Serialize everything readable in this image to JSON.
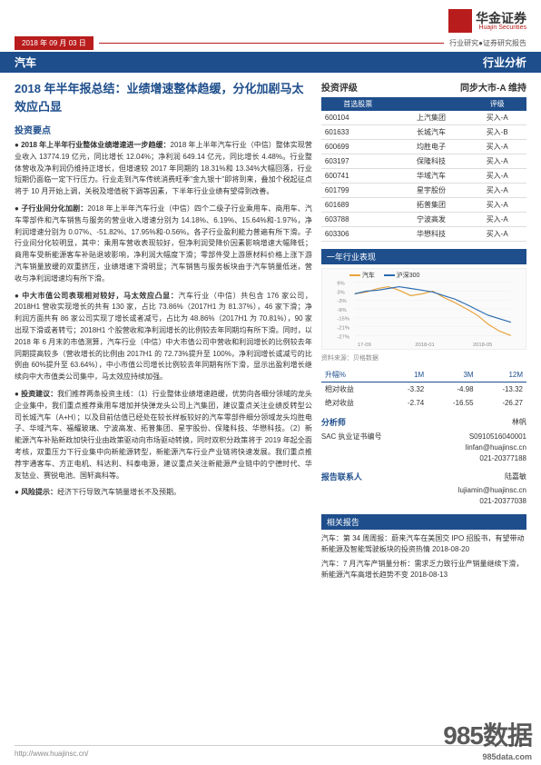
{
  "header": {
    "logo_cn": "华金证券",
    "logo_en": "Huajin Securities",
    "date": "2018 年 09 月 03 日",
    "meta": "行业研究●证券研究报告"
  },
  "bluebar": {
    "left": "汽车",
    "right": "行业分析"
  },
  "title": "2018 年半年报总结：业绩增速整体趋缓，分化加剧马太效应凸显",
  "section_header": "投资要点",
  "bullets": [
    {
      "lead": "2018 年上半年行业整体业绩增速进一步趋缓：",
      "body": "2018 年上半年汽车行业（中信）整体实现营业收入 13774.19 亿元，同比增长 12.04%；净利润 649.14 亿元，同比增长 4.48%。行业整体营收及净利润仍维持正增长，但增速较 2017 年同期的 18.31%和 13.34%大幅回落，行业短期仍面临一定下行压力。行业走到汽车传统消费旺季\"金九银十\"即将到来，叠加个税起征点将于 10 月开始上调，关税及增值税下调等因素，下半年行业业绩有望得到改善。"
    },
    {
      "lead": "子行业间分化加剧：",
      "body": "2018 年上半年汽车行业（中信）四个二级子行业乘用车、商用车、汽车零部件和汽车销售与服务的营业收入增速分别为 14.18%、6.19%、15.64%和-1.97%，净利润增速分别为 0.07%、-51.82%、17.95%和-0.56%。各子行业盈利能力普遍有所下滑。子行业间分化较明显，其中：乘用车营收表现较好，但净利润受降价因素影响增速大幅降低；商用车受新能源客车补贴退坡影响，净利润大幅度下滑；零部件受上游原材料价格上涨下游汽车销量放缓的双重挤压，业绩增速下滑明显；汽车销售与服务板块由于汽车销量低迷，营收与净利润增速均有所下滑。"
    },
    {
      "lead": "中大市值公司表现相对较好，马太效应凸显：",
      "body": "汽车行业（中信）共包含 176 家公司，2018H1 营收实现增长的共有 130 家，占比 73.86%（2017H1 为 81.37%），46 家下滑；净利润方面共有 86 家公司实现了增长或者减亏，占比为 48.86%（2017H1 为 70.81%），90 家出现下滑或者转亏；2018H1 个股营收和净利润增长的比例较去年同期均有所下滑。同时，以 2018 年 6 月末的市值测算，汽车行业（中信）中大市值公司中营收和利润增长的比例较去年同期提高较多（营收增长的比例由 2017H1 的 72.73%提升至 100%，净利润增长或减亏的比例由 60%提升至 63.64%），中小市值公司增长比例较去年同期有所下滑，显示出盈利增长继续向中大市值类公司集中，马太效应持续加强。"
    },
    {
      "lead": "投资建议：",
      "body": "我们推荐两条投资主线：（1）行业整体业绩增速趋缓，优势向各细分领域的龙头企业集中，我们重点推荐乘用车增加并快弹龙头公司上汽集团，建议重点关注业绩反转型公司长城汽车（A+H）；以及目前估值已经处在较长样板较好的汽车零部件细分领域龙头均胜电子、华域汽车、福耀玻璃、宁波高发、拓普集团、星宇股份、保隆科技、华懋科技。（2）新能源汽车补贴新政加快行业由政策驱动向市场驱动转换，同时双积分政策将于 2019 年起全面考核，双重压力下行业集中向新能源转型，新能源汽车行业产业链将快速发展。我们重点推荐宇通客车、方正电机、科达利、科泰电源，建议重点关注新能源产业链中的宁德时代、华友钴业、赛锐电池、国轩高科等。"
    },
    {
      "lead": "风险提示：",
      "body": "经济下行导致汽车销量增长不及预期。"
    }
  ],
  "rating": {
    "label": "投资评级",
    "value": "同步大市-A 维持"
  },
  "stock_table": {
    "headers": [
      "首选股票",
      "",
      "评级"
    ],
    "rows": [
      [
        "600104",
        "上汽集团",
        "买入-A"
      ],
      [
        "601633",
        "长城汽车",
        "买入-B"
      ],
      [
        "600699",
        "均胜电子",
        "买入-A"
      ],
      [
        "603197",
        "保隆科技",
        "买入-A"
      ],
      [
        "600741",
        "华域汽车",
        "买入-A"
      ],
      [
        "601799",
        "星宇股份",
        "买入-A"
      ],
      [
        "601689",
        "拓普集团",
        "买入-A"
      ],
      [
        "603788",
        "宁波高发",
        "买入-A"
      ],
      [
        "603306",
        "华懋科技",
        "买入-A"
      ]
    ]
  },
  "perf_section": "一年行业表现",
  "chart": {
    "series": [
      {
        "name": "汽车",
        "color": "#e8a33d"
      },
      {
        "name": "沪深300",
        "color": "#2b6cb0"
      }
    ],
    "y_ticks": [
      "9%",
      "3%",
      "-3%",
      "-9%",
      "-15%",
      "-21%",
      "-27%"
    ],
    "x_ticks": [
      "17-09",
      "2018-01",
      "2018-05"
    ],
    "background": "#fafafa",
    "grid_color": "#eeeeee",
    "fontsize": 7
  },
  "src_note": "资料来源：贝格数据",
  "perf_table": {
    "headers": [
      "升幅%",
      "1M",
      "3M",
      "12M"
    ],
    "rows": [
      [
        "相对收益",
        "-3.32",
        "-4.98",
        "-13.32"
      ],
      [
        "绝对收益",
        "-2.74",
        "-16.55",
        "-26.27"
      ]
    ]
  },
  "analyst": {
    "title": "分析师",
    "name": "林帆",
    "sac_label": "SAC 执业证书编号",
    "sac": "S0910516040001",
    "email": "linfan@huajinsc.cn",
    "phone": "021-20377188"
  },
  "contact": {
    "title": "报告联系人",
    "name": "陆嘉敏",
    "email": "lujiamin@huajinsc.cn",
    "phone": "021-20377038"
  },
  "related": {
    "title": "相关报告",
    "items": [
      {
        "text": "汽车：第 34 周周报：蔚来汽车在美国交 IPO 招股书，有望带动新能源及智能驾驶板块的投资热情 2018-08-20"
      },
      {
        "text": "汽车：7 月汽车产销量分析：需求乏力致行业产销量继续下滑，新能源汽车高增长趋势不变 2018-08-13"
      }
    ]
  },
  "footer": {
    "left": "http://www.huajinsc.cn/"
  },
  "watermark": {
    "main": "985数据",
    "sub": "985data.com"
  }
}
